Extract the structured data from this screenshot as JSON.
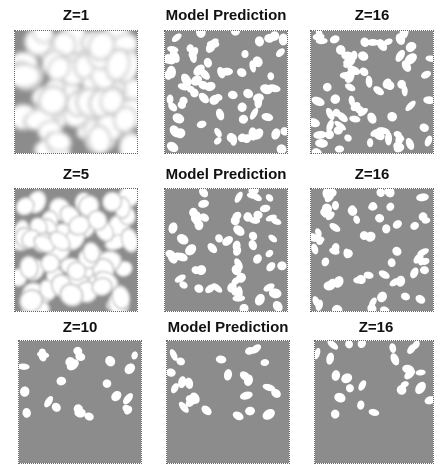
{
  "figure": {
    "rows": [
      {
        "cells": [
          {
            "title": "Z=1",
            "kind": "blurred-dense"
          },
          {
            "title": "Model Prediction",
            "kind": "nuclei-dense"
          },
          {
            "title": "Z=16",
            "kind": "nuclei-dense"
          }
        ]
      },
      {
        "cells": [
          {
            "title": "Z=5",
            "kind": "blurred-medium"
          },
          {
            "title": "Model Prediction",
            "kind": "nuclei-medium"
          },
          {
            "title": "Z=16",
            "kind": "nuclei-medium"
          }
        ]
      },
      {
        "cells": [
          {
            "title": "Z=10",
            "kind": "nuclei-sparse"
          },
          {
            "title": "Model Prediction",
            "kind": "nuclei-sparse"
          },
          {
            "title": "Z=16",
            "kind": "nuclei-sparse"
          }
        ]
      }
    ],
    "colors": {
      "background_gray": "#8c8c8c",
      "nucleus_white": "#ffffff",
      "blur_halo": "#cfcfcf"
    }
  }
}
